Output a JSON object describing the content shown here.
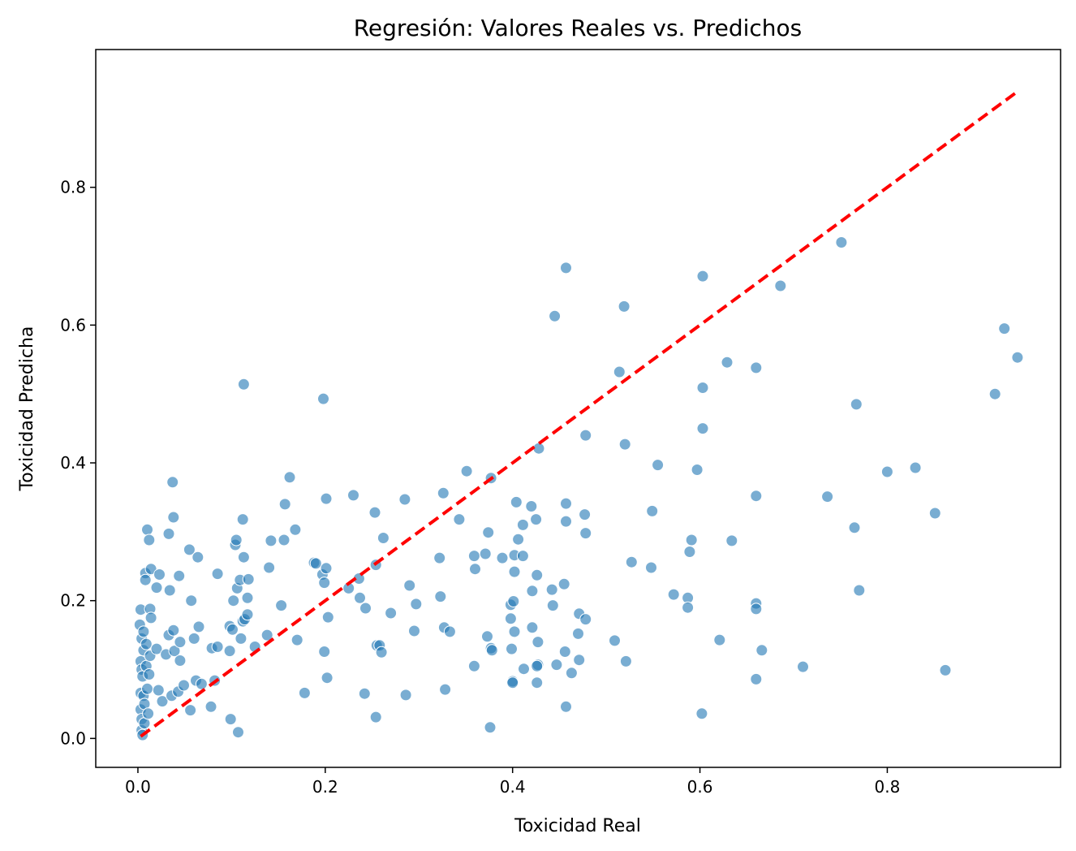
{
  "chart_data": {
    "type": "scatter",
    "title": "Regresión: Valores Reales vs. Predichos",
    "xlabel": "Toxicidad Real",
    "ylabel": "Toxicidad Predicha",
    "xlim": [
      -0.045,
      0.985
    ],
    "ylim": [
      -0.042,
      1.0
    ],
    "xticks": [
      0.0,
      0.2,
      0.4,
      0.6,
      0.8
    ],
    "yticks": [
      0.0,
      0.2,
      0.4,
      0.6,
      0.8
    ],
    "xtick_labels": [
      "0.0",
      "0.2",
      "0.4",
      "0.6",
      "0.8"
    ],
    "ytick_labels": [
      "0.0",
      "0.2",
      "0.4",
      "0.6",
      "0.8"
    ],
    "grid": false,
    "point_color": "#1f77b4",
    "line_color": "#ff0000",
    "reference_line": {
      "style": "dashed",
      "x": [
        0.003,
        0.94
      ],
      "y": [
        0.003,
        0.94
      ]
    },
    "points": [
      [
        0.003,
        0.187
      ],
      [
        0.002,
        0.165
      ],
      [
        0.004,
        0.145
      ],
      [
        0.003,
        0.112
      ],
      [
        0.004,
        0.1
      ],
      [
        0.003,
        0.066
      ],
      [
        0.003,
        0.042
      ],
      [
        0.004,
        0.028
      ],
      [
        0.004,
        0.012
      ],
      [
        0.005,
        0.005
      ],
      [
        0.006,
        0.155
      ],
      [
        0.006,
        0.128
      ],
      [
        0.005,
        0.09
      ],
      [
        0.006,
        0.062
      ],
      [
        0.007,
        0.05
      ],
      [
        0.007,
        0.022
      ],
      [
        0.008,
        0.24
      ],
      [
        0.008,
        0.23
      ],
      [
        0.009,
        0.137
      ],
      [
        0.009,
        0.105
      ],
      [
        0.01,
        0.303
      ],
      [
        0.01,
        0.072
      ],
      [
        0.011,
        0.036
      ],
      [
        0.012,
        0.288
      ],
      [
        0.013,
        0.188
      ],
      [
        0.014,
        0.246
      ],
      [
        0.014,
        0.175
      ],
      [
        0.013,
        0.12
      ],
      [
        0.012,
        0.093
      ],
      [
        0.02,
        0.219
      ],
      [
        0.02,
        0.13
      ],
      [
        0.022,
        0.07
      ],
      [
        0.026,
        0.054
      ],
      [
        0.023,
        0.238
      ],
      [
        0.03,
        0.122
      ],
      [
        0.033,
        0.15
      ],
      [
        0.033,
        0.297
      ],
      [
        0.034,
        0.215
      ],
      [
        0.036,
        0.062
      ],
      [
        0.037,
        0.372
      ],
      [
        0.038,
        0.321
      ],
      [
        0.038,
        0.157
      ],
      [
        0.039,
        0.127
      ],
      [
        0.043,
        0.068
      ],
      [
        0.045,
        0.113
      ],
      [
        0.044,
        0.236
      ],
      [
        0.045,
        0.14
      ],
      [
        0.049,
        0.077
      ],
      [
        0.055,
        0.274
      ],
      [
        0.056,
        0.041
      ],
      [
        0.057,
        0.2
      ],
      [
        0.06,
        0.145
      ],
      [
        0.062,
        0.084
      ],
      [
        0.064,
        0.263
      ],
      [
        0.065,
        0.162
      ],
      [
        0.068,
        0.079
      ],
      [
        0.078,
        0.046
      ],
      [
        0.079,
        0.131
      ],
      [
        0.082,
        0.084
      ],
      [
        0.085,
        0.239
      ],
      [
        0.085,
        0.133
      ],
      [
        0.098,
        0.163
      ],
      [
        0.098,
        0.127
      ],
      [
        0.099,
        0.028
      ],
      [
        0.101,
        0.158
      ],
      [
        0.102,
        0.2
      ],
      [
        0.104,
        0.281
      ],
      [
        0.105,
        0.288
      ],
      [
        0.106,
        0.218
      ],
      [
        0.107,
        0.009
      ],
      [
        0.109,
        0.23
      ],
      [
        0.11,
        0.145
      ],
      [
        0.112,
        0.17
      ],
      [
        0.112,
        0.318
      ],
      [
        0.113,
        0.514
      ],
      [
        0.113,
        0.263
      ],
      [
        0.114,
        0.173
      ],
      [
        0.117,
        0.18
      ],
      [
        0.118,
        0.231
      ],
      [
        0.117,
        0.204
      ],
      [
        0.125,
        0.133
      ],
      [
        0.138,
        0.15
      ],
      [
        0.14,
        0.248
      ],
      [
        0.142,
        0.287
      ],
      [
        0.153,
        0.193
      ],
      [
        0.156,
        0.288
      ],
      [
        0.157,
        0.34
      ],
      [
        0.162,
        0.379
      ],
      [
        0.168,
        0.303
      ],
      [
        0.17,
        0.143
      ],
      [
        0.178,
        0.066
      ],
      [
        0.188,
        0.255
      ],
      [
        0.19,
        0.254
      ],
      [
        0.197,
        0.238
      ],
      [
        0.198,
        0.493
      ],
      [
        0.199,
        0.126
      ],
      [
        0.199,
        0.226
      ],
      [
        0.201,
        0.247
      ],
      [
        0.201,
        0.348
      ],
      [
        0.202,
        0.088
      ],
      [
        0.203,
        0.176
      ],
      [
        0.225,
        0.218
      ],
      [
        0.23,
        0.353
      ],
      [
        0.236,
        0.232
      ],
      [
        0.237,
        0.204
      ],
      [
        0.242,
        0.065
      ],
      [
        0.243,
        0.189
      ],
      [
        0.253,
        0.328
      ],
      [
        0.254,
        0.252
      ],
      [
        0.254,
        0.031
      ],
      [
        0.255,
        0.135
      ],
      [
        0.258,
        0.135
      ],
      [
        0.26,
        0.125
      ],
      [
        0.262,
        0.291
      ],
      [
        0.27,
        0.182
      ],
      [
        0.285,
        0.347
      ],
      [
        0.286,
        0.063
      ],
      [
        0.29,
        0.222
      ],
      [
        0.295,
        0.156
      ],
      [
        0.297,
        0.195
      ],
      [
        0.322,
        0.262
      ],
      [
        0.323,
        0.206
      ],
      [
        0.326,
        0.356
      ],
      [
        0.327,
        0.161
      ],
      [
        0.328,
        0.071
      ],
      [
        0.333,
        0.155
      ],
      [
        0.343,
        0.318
      ],
      [
        0.351,
        0.388
      ],
      [
        0.359,
        0.105
      ],
      [
        0.359,
        0.265
      ],
      [
        0.36,
        0.246
      ],
      [
        0.371,
        0.268
      ],
      [
        0.373,
        0.148
      ],
      [
        0.374,
        0.299
      ],
      [
        0.377,
        0.131
      ],
      [
        0.377,
        0.378
      ],
      [
        0.376,
        0.016
      ],
      [
        0.378,
        0.128
      ],
      [
        0.389,
        0.262
      ],
      [
        0.398,
        0.174
      ],
      [
        0.398,
        0.194
      ],
      [
        0.399,
        0.13
      ],
      [
        0.4,
        0.083
      ],
      [
        0.4,
        0.081
      ],
      [
        0.401,
        0.199
      ],
      [
        0.402,
        0.242
      ],
      [
        0.402,
        0.266
      ],
      [
        0.402,
        0.155
      ],
      [
        0.404,
        0.343
      ],
      [
        0.406,
        0.289
      ],
      [
        0.411,
        0.31
      ],
      [
        0.411,
        0.265
      ],
      [
        0.412,
        0.101
      ],
      [
        0.42,
        0.337
      ],
      [
        0.421,
        0.214
      ],
      [
        0.421,
        0.161
      ],
      [
        0.425,
        0.318
      ],
      [
        0.426,
        0.237
      ],
      [
        0.426,
        0.081
      ],
      [
        0.427,
        0.14
      ],
      [
        0.427,
        0.107
      ],
      [
        0.426,
        0.105
      ],
      [
        0.428,
        0.421
      ],
      [
        0.442,
        0.216
      ],
      [
        0.443,
        0.193
      ],
      [
        0.445,
        0.613
      ],
      [
        0.447,
        0.107
      ],
      [
        0.455,
        0.224
      ],
      [
        0.456,
        0.126
      ],
      [
        0.457,
        0.046
      ],
      [
        0.457,
        0.341
      ],
      [
        0.457,
        0.683
      ],
      [
        0.457,
        0.315
      ],
      [
        0.463,
        0.095
      ],
      [
        0.47,
        0.152
      ],
      [
        0.471,
        0.181
      ],
      [
        0.471,
        0.114
      ],
      [
        0.477,
        0.325
      ],
      [
        0.478,
        0.298
      ],
      [
        0.478,
        0.44
      ],
      [
        0.478,
        0.173
      ],
      [
        0.509,
        0.142
      ],
      [
        0.514,
        0.532
      ],
      [
        0.519,
        0.627
      ],
      [
        0.52,
        0.427
      ],
      [
        0.521,
        0.112
      ],
      [
        0.527,
        0.256
      ],
      [
        0.548,
        0.248
      ],
      [
        0.549,
        0.33
      ],
      [
        0.555,
        0.397
      ],
      [
        0.572,
        0.209
      ],
      [
        0.587,
        0.204
      ],
      [
        0.587,
        0.19
      ],
      [
        0.589,
        0.271
      ],
      [
        0.591,
        0.288
      ],
      [
        0.597,
        0.39
      ],
      [
        0.602,
        0.036
      ],
      [
        0.603,
        0.509
      ],
      [
        0.603,
        0.671
      ],
      [
        0.603,
        0.45
      ],
      [
        0.621,
        0.143
      ],
      [
        0.629,
        0.546
      ],
      [
        0.634,
        0.287
      ],
      [
        0.66,
        0.538
      ],
      [
        0.66,
        0.352
      ],
      [
        0.66,
        0.196
      ],
      [
        0.66,
        0.188
      ],
      [
        0.66,
        0.086
      ],
      [
        0.666,
        0.128
      ],
      [
        0.686,
        0.657
      ],
      [
        0.71,
        0.104
      ],
      [
        0.736,
        0.351
      ],
      [
        0.751,
        0.72
      ],
      [
        0.765,
        0.306
      ],
      [
        0.767,
        0.485
      ],
      [
        0.77,
        0.215
      ],
      [
        0.8,
        0.387
      ],
      [
        0.83,
        0.393
      ],
      [
        0.851,
        0.327
      ],
      [
        0.862,
        0.099
      ],
      [
        0.915,
        0.5
      ],
      [
        0.925,
        0.595
      ],
      [
        0.939,
        0.553
      ]
    ]
  }
}
